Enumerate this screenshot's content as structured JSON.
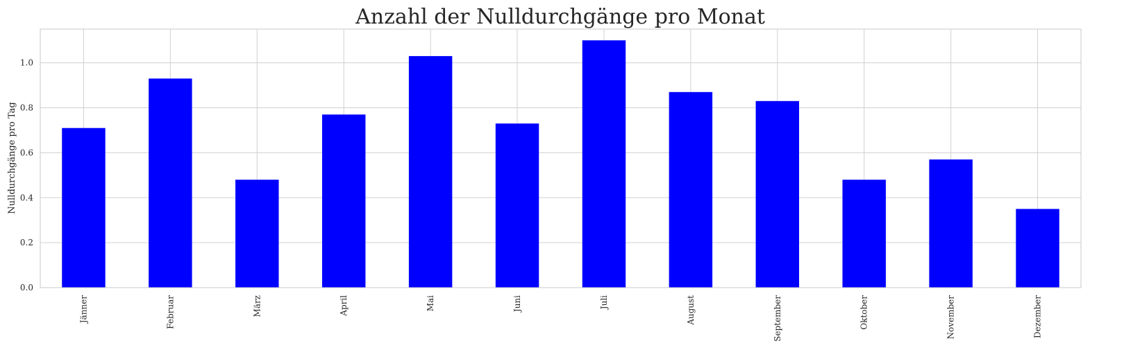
{
  "chart_data": {
    "type": "bar",
    "title": "Anzahl der Nulldurchgänge pro Monat",
    "xlabel": "",
    "ylabel": "Nulldurchgänge pro Tag",
    "categories": [
      "Jänner",
      "Februar",
      "März",
      "April",
      "Mai",
      "Juni",
      "Juli",
      "August",
      "September",
      "Oktober",
      "November",
      "Dezember"
    ],
    "values": [
      0.71,
      0.93,
      0.48,
      0.77,
      1.03,
      0.73,
      1.1,
      0.87,
      0.83,
      0.48,
      0.57,
      0.35
    ],
    "ylim": [
      0,
      1.15
    ],
    "yticks": [
      0.0,
      0.2,
      0.4,
      0.6,
      0.8,
      1.0
    ],
    "ytick_labels": [
      "0.0",
      "0.2",
      "0.4",
      "0.6",
      "0.8",
      "1.0"
    ],
    "grid": true,
    "bar_color": "#0000ff"
  }
}
